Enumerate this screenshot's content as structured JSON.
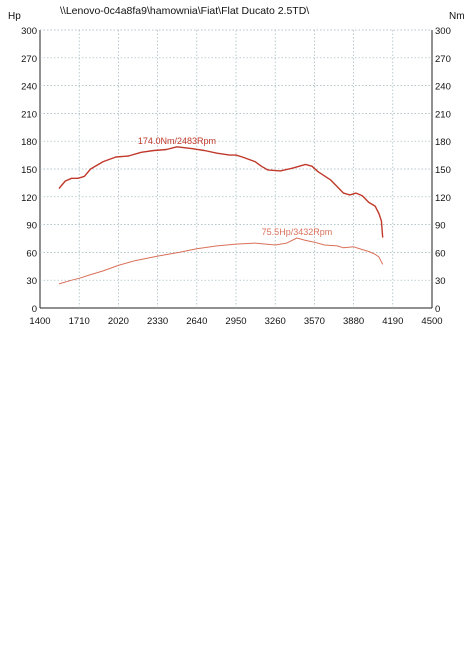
{
  "header": {
    "path": "\\\\Lenovo-0c4a8fa9\\hamownia\\Fiat\\Flat Ducato 2.5TD\\"
  },
  "chart_data": {
    "type": "line",
    "left_axis_label": "Hp",
    "right_axis_label": "Nm",
    "xlim": [
      1400,
      4500
    ],
    "ylim": [
      0,
      300
    ],
    "x_ticks": [
      1400,
      1710,
      2020,
      2330,
      2640,
      2950,
      3260,
      3570,
      3880,
      4190,
      4500
    ],
    "y_ticks": [
      0,
      30,
      60,
      90,
      120,
      150,
      180,
      210,
      240,
      270,
      300
    ],
    "grid": true,
    "colors": {
      "torque": "#c0392b",
      "power": "#d9705a",
      "grid": "#9ab3b8"
    },
    "series": [
      {
        "axis": "right",
        "values": [
          [
            1550,
            129
          ],
          [
            1600,
            137
          ],
          [
            1650,
            140
          ],
          [
            1700,
            140
          ],
          [
            1750,
            142
          ],
          [
            1800,
            150
          ],
          [
            1900,
            158
          ],
          [
            2000,
            163
          ],
          [
            2100,
            164
          ],
          [
            2200,
            168
          ],
          [
            2300,
            170
          ],
          [
            2400,
            171
          ],
          [
            2483,
            174
          ],
          [
            2600,
            172
          ],
          [
            2700,
            170
          ],
          [
            2800,
            167
          ],
          [
            2900,
            165
          ],
          [
            2950,
            165
          ],
          [
            3000,
            163
          ],
          [
            3100,
            158
          ],
          [
            3150,
            153
          ],
          [
            3200,
            149
          ],
          [
            3300,
            148
          ],
          [
            3400,
            151
          ],
          [
            3500,
            155
          ],
          [
            3550,
            153
          ],
          [
            3600,
            147
          ],
          [
            3700,
            138
          ],
          [
            3800,
            124
          ],
          [
            3850,
            122
          ],
          [
            3900,
            124
          ],
          [
            3950,
            121
          ],
          [
            4000,
            114
          ],
          [
            4050,
            110
          ],
          [
            4080,
            102
          ],
          [
            4100,
            94
          ],
          [
            4110,
            76
          ]
        ]
      },
      {
        "axis": "left",
        "values": [
          [
            1550,
            26
          ],
          [
            1650,
            30
          ],
          [
            1710,
            32
          ],
          [
            1800,
            36
          ],
          [
            1900,
            40
          ],
          [
            2020,
            46
          ],
          [
            2150,
            51
          ],
          [
            2330,
            56
          ],
          [
            2500,
            60
          ],
          [
            2640,
            64
          ],
          [
            2800,
            67
          ],
          [
            2950,
            69
          ],
          [
            3100,
            70
          ],
          [
            3260,
            68
          ],
          [
            3350,
            70
          ],
          [
            3432,
            75.5
          ],
          [
            3500,
            73
          ],
          [
            3570,
            71
          ],
          [
            3650,
            68
          ],
          [
            3750,
            67
          ],
          [
            3800,
            65
          ],
          [
            3880,
            66
          ],
          [
            3950,
            63
          ],
          [
            4000,
            61
          ],
          [
            4050,
            58
          ],
          [
            4080,
            55
          ],
          [
            4110,
            47
          ]
        ]
      }
    ],
    "annotations": [
      {
        "text": "174.0Nm/2483Rpm",
        "x": 2483,
        "y": 174,
        "axis": "right",
        "series": 0
      },
      {
        "text": "75.5Hp/3432Rpm",
        "x": 3432,
        "y": 75.5,
        "axis": "left",
        "series": 1
      }
    ]
  }
}
